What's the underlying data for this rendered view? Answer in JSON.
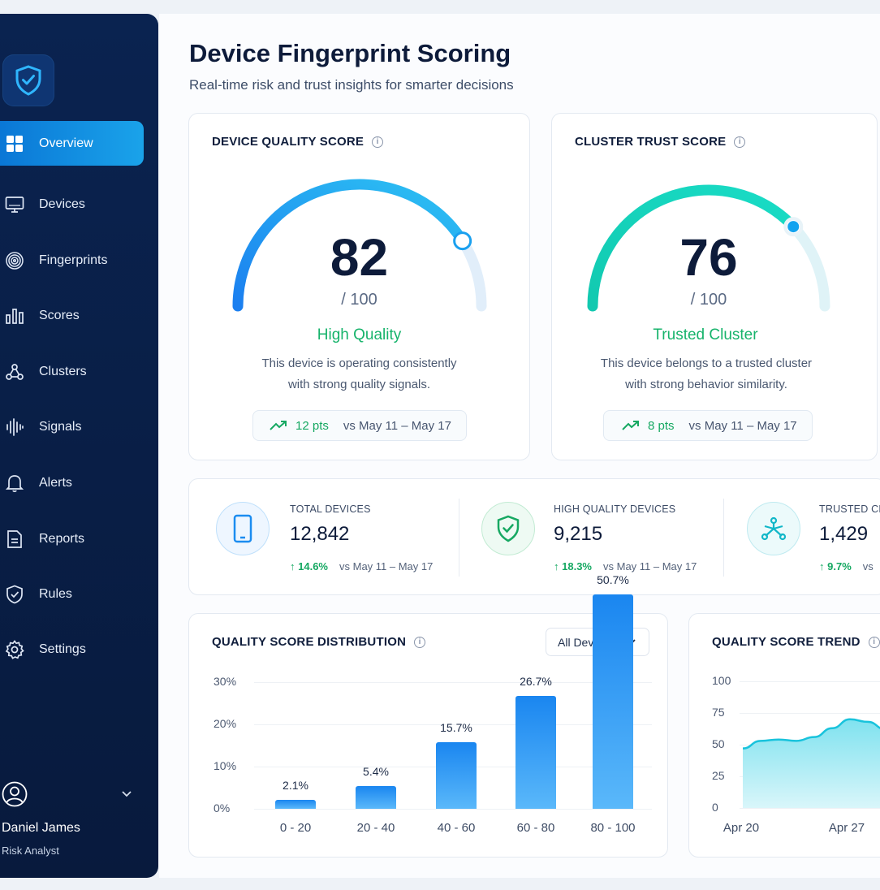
{
  "page": {
    "title": "Device Fingerprint Scoring",
    "subtitle": "Real-time risk and trust insights for smarter decisions"
  },
  "sidebar": {
    "items": [
      {
        "label": "Overview",
        "icon": "grid-icon"
      },
      {
        "label": "Devices",
        "icon": "monitor-icon"
      },
      {
        "label": "Fingerprints",
        "icon": "fingerprint-icon"
      },
      {
        "label": "Scores",
        "icon": "bar-chart-icon"
      },
      {
        "label": "Clusters",
        "icon": "cluster-icon"
      },
      {
        "label": "Signals",
        "icon": "signal-wave-icon"
      },
      {
        "label": "Alerts",
        "icon": "bell-icon"
      },
      {
        "label": "Reports",
        "icon": "document-icon"
      },
      {
        "label": "Rules",
        "icon": "shield-check-icon"
      },
      {
        "label": "Settings",
        "icon": "gear-icon"
      }
    ],
    "active": "Overview",
    "user": {
      "name": "Daniel James",
      "role": "Risk Analyst"
    }
  },
  "quality_card": {
    "title": "DEVICE QUALITY SCORE",
    "score": "82",
    "out_of": "/ 100",
    "score_fraction": 0.82,
    "status": "High Quality",
    "desc_line1": "This device is operating consistently",
    "desc_line2": "with strong quality signals.",
    "change": "12 pts",
    "compare": "vs May 11 – May 17",
    "accent": "#1a8cf0"
  },
  "trust_card": {
    "title": "CLUSTER TRUST SCORE",
    "score": "76",
    "out_of": "/ 100",
    "score_fraction": 0.76,
    "status": "Trusted Cluster",
    "desc_line1": "This device belongs to a trusted cluster",
    "desc_line2": "with strong behavior similarity.",
    "change": "8 pts",
    "compare": "vs May 11 – May 17",
    "accent": "#17d2b6"
  },
  "stats": [
    {
      "label": "TOTAL DEVICES",
      "value": "12,842",
      "change": "14.6%",
      "compare": "vs May 11 – May 17",
      "icon": "phone-icon"
    },
    {
      "label": "HIGH QUALITY DEVICES",
      "value": "9,215",
      "change": "18.3%",
      "compare": "vs May 11 – May 17",
      "icon": "shield-check-icon"
    },
    {
      "label": "TRUSTED CL",
      "value": "1,429",
      "change": "9.7%",
      "compare": "vs",
      "icon": "network-icon"
    }
  ],
  "distribution": {
    "title": "QUALITY SCORE DISTRIBUTION",
    "filter": "All Devices",
    "y_ticks": [
      "30%",
      "20%",
      "10%",
      "0%"
    ]
  },
  "trend": {
    "title": "QUALITY SCORE TREND",
    "y_ticks": [
      "100",
      "75",
      "50",
      "25",
      "0"
    ],
    "x_ticks": [
      "Apr 20",
      "Apr 27"
    ]
  },
  "chart_data": [
    {
      "type": "bar",
      "title": "QUALITY SCORE DISTRIBUTION",
      "categories": [
        "0 - 20",
        "20 - 40",
        "40 - 60",
        "60 - 80",
        "80 - 100"
      ],
      "values": [
        2.1,
        5.4,
        15.7,
        26.7,
        50.7
      ],
      "value_labels": [
        "2.1%",
        "5.4%",
        "15.7%",
        "26.7%",
        "50.7%"
      ],
      "ylim": [
        0,
        30
      ],
      "y_unit": "%",
      "grid": true
    },
    {
      "type": "area",
      "title": "QUALITY SCORE TREND",
      "x": [
        "Apr 20",
        "Apr 21",
        "Apr 22",
        "Apr 23",
        "Apr 24",
        "Apr 25",
        "Apr 26",
        "Apr 27",
        "Apr 28"
      ],
      "values": [
        47,
        53,
        54,
        53,
        56,
        63,
        70,
        68,
        62
      ],
      "ylim": [
        0,
        100
      ],
      "grid": true
    }
  ]
}
